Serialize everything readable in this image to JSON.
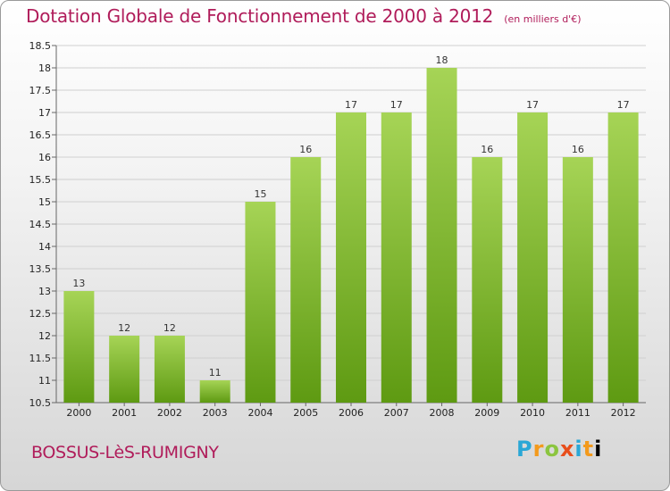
{
  "header": {
    "title": "Dotation Globale de Fonctionnement de 2000 à 2012",
    "subtitle": "(en milliers d'€)"
  },
  "footer": {
    "location": "BOSSUS-LèS-RUMIGNY",
    "logo_letters": [
      "P",
      "r",
      "o",
      "x",
      "i",
      "t",
      "i"
    ]
  },
  "colors": {
    "title": "#b01c5a",
    "bar_light": "#a6d456",
    "bar_dark": "#5e9a12"
  },
  "chart_data": {
    "type": "bar",
    "title": "Dotation Globale de Fonctionnement de 2000 à 2012",
    "subtitle": "(en milliers d'€)",
    "xlabel": "",
    "ylabel": "",
    "categories": [
      "2000",
      "2001",
      "2002",
      "2003",
      "2004",
      "2005",
      "2006",
      "2007",
      "2008",
      "2009",
      "2010",
      "2011",
      "2012"
    ],
    "values": [
      13,
      12,
      12,
      11,
      15,
      16,
      17,
      17,
      18,
      16,
      17,
      16,
      17
    ],
    "data_labels": [
      "13",
      "12",
      "12",
      "11",
      "15",
      "16",
      "17",
      "17",
      "18",
      "16",
      "17",
      "16",
      "17"
    ],
    "ylim": [
      10.5,
      18.5
    ],
    "yticks": [
      10.5,
      11,
      11.5,
      12,
      12.5,
      13,
      13.5,
      14,
      14.5,
      15,
      15.5,
      16,
      16.5,
      17,
      17.5,
      18,
      18.5
    ],
    "ytick_labels": [
      "10.5",
      "11",
      "11.5",
      "12",
      "12.5",
      "13",
      "13.5",
      "14",
      "14.5",
      "15",
      "15.5",
      "16",
      "16.5",
      "17",
      "17.5",
      "18",
      "18.5"
    ],
    "grid": true
  }
}
